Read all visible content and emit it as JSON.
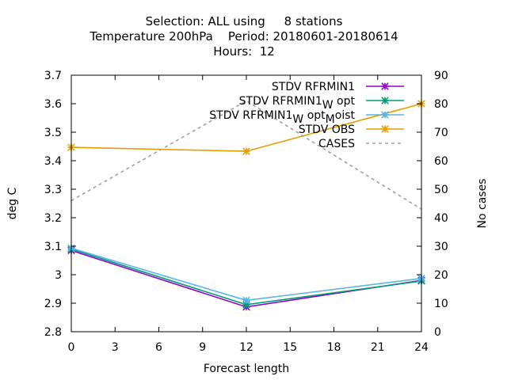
{
  "chart_data": {
    "type": "line",
    "title_lines": [
      "Selection: ALL using     8 stations",
      "Temperature 200hPa    Period: 20180601-20180614",
      "Hours:  12"
    ],
    "xlabel": "Forecast length",
    "ylabel": "deg C",
    "y2label": "No cases",
    "xlim": [
      0,
      24
    ],
    "ylim": [
      2.8,
      3.7
    ],
    "y2lim": [
      0,
      90
    ],
    "xticks": [
      0,
      3,
      6,
      9,
      12,
      15,
      18,
      21,
      24
    ],
    "yticks": [
      2.8,
      2.9,
      3.0,
      3.1,
      3.2,
      3.3,
      3.4,
      3.5,
      3.6,
      3.7
    ],
    "yticklabels": [
      "2.8",
      "2.9",
      "3",
      "3.1",
      "3.2",
      "3.3",
      "3.4",
      "3.5",
      "3.6",
      "3.7"
    ],
    "y2ticks": [
      0,
      10,
      20,
      30,
      40,
      50,
      60,
      70,
      80,
      90
    ],
    "grid": false,
    "legend_position": "top-right",
    "series": [
      {
        "name": "STDV RFRMIN1",
        "axis": "y",
        "color": "#9400d3",
        "marker": "asterisk",
        "dash": false,
        "x": [
          0,
          12,
          24
        ],
        "y": [
          3.085,
          2.887,
          2.98
        ]
      },
      {
        "name": "STDV RFRMIN1_W opt",
        "legend_parts": [
          [
            "STDV RFRMIN1",
            "n"
          ],
          [
            "W",
            "sub"
          ],
          [
            " opt",
            "n"
          ]
        ],
        "axis": "y",
        "color": "#009e73",
        "marker": "asterisk",
        "dash": false,
        "x": [
          0,
          12,
          24
        ],
        "y": [
          3.09,
          2.895,
          2.978
        ]
      },
      {
        "name": "STDV RFRMIN1_W opt_M oist",
        "legend_parts": [
          [
            "STDV RFRMIN1",
            "n"
          ],
          [
            "W",
            "sub"
          ],
          [
            " opt",
            "n"
          ],
          [
            "M",
            "sub"
          ],
          [
            "oist",
            "n"
          ]
        ],
        "axis": "y",
        "color": "#56b4e9",
        "marker": "asterisk",
        "dash": false,
        "x": [
          0,
          12,
          24
        ],
        "y": [
          3.093,
          2.91,
          2.987
        ]
      },
      {
        "name": "STDV OBS",
        "axis": "y",
        "color": "#e69f00",
        "marker": "asterisk",
        "dash": false,
        "x": [
          0,
          12,
          24
        ],
        "y": [
          3.447,
          3.433,
          3.6
        ]
      },
      {
        "name": "CASES",
        "axis": "y2",
        "color": "#a0a0a0",
        "marker": "none",
        "dash": true,
        "x": [
          0,
          12,
          24
        ],
        "y": [
          46,
          81,
          43
        ]
      }
    ]
  }
}
